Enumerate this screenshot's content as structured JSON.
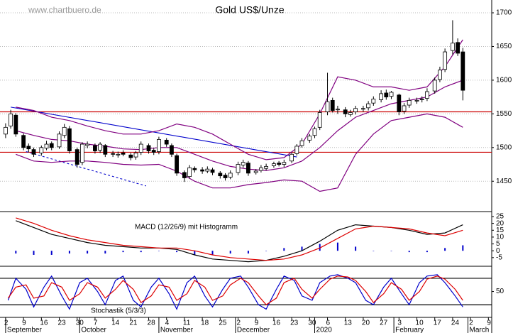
{
  "source": "www.chartbuero.de",
  "chart_data": [
    {
      "type": "candlestick",
      "title": "Gold US$/Unze",
      "x": [
        0,
        2,
        4,
        7,
        9,
        11,
        14,
        16,
        18,
        21,
        23,
        25,
        28,
        30,
        32,
        35,
        37,
        39,
        42,
        44,
        46,
        49,
        51,
        53,
        56,
        58,
        60,
        63,
        65,
        67,
        70,
        72,
        74,
        77,
        79,
        81,
        84,
        86,
        88,
        91,
        93,
        95,
        98,
        100,
        102,
        105,
        107,
        109,
        112,
        114,
        116,
        119,
        121,
        123,
        126,
        128,
        130,
        133,
        135,
        137,
        140,
        142,
        144,
        147,
        149,
        151,
        154,
        156,
        158,
        161,
        163,
        165,
        168,
        170,
        172,
        175,
        177,
        179
      ],
      "open": [
        1520,
        1532,
        1548,
        1518,
        1502,
        1497,
        1492,
        1499,
        1506,
        1501,
        1518,
        1528,
        1497,
        1478,
        1503,
        1503,
        1496,
        1503,
        1491,
        1489,
        1492,
        1489,
        1486,
        1493,
        1503,
        1496,
        1494,
        1511,
        1503,
        1488,
        1463,
        1457,
        1469,
        1467,
        1465,
        1467,
        1462,
        1459,
        1456,
        1463,
        1474,
        1477,
        1463,
        1466,
        1469,
        1473,
        1477,
        1475,
        1480,
        1491,
        1503,
        1511,
        1518,
        1530,
        1553,
        1570,
        1556,
        1556,
        1549,
        1553,
        1557,
        1559,
        1566,
        1571,
        1581,
        1576,
        1578,
        1554,
        1563,
        1569,
        1571,
        1573,
        1584,
        1601,
        1616,
        1644,
        1656,
        1642
      ],
      "high": [
        1536,
        1556,
        1551,
        1521,
        1506,
        1500,
        1503,
        1510,
        1509,
        1524,
        1535,
        1532,
        1500,
        1508,
        1509,
        1506,
        1508,
        1505,
        1495,
        1494,
        1496,
        1492,
        1495,
        1509,
        1506,
        1499,
        1516,
        1514,
        1506,
        1491,
        1466,
        1474,
        1472,
        1471,
        1472,
        1470,
        1465,
        1462,
        1466,
        1479,
        1482,
        1480,
        1468,
        1474,
        1476,
        1479,
        1480,
        1482,
        1493,
        1505,
        1514,
        1520,
        1531,
        1556,
        1611,
        1574,
        1562,
        1560,
        1556,
        1562,
        1562,
        1569,
        1576,
        1585,
        1586,
        1584,
        1580,
        1566,
        1574,
        1574,
        1576,
        1588,
        1604,
        1620,
        1647,
        1689,
        1662,
        1648
      ],
      "low": [
        1514,
        1528,
        1516,
        1496,
        1493,
        1486,
        1488,
        1496,
        1496,
        1498,
        1514,
        1491,
        1470,
        1474,
        1499,
        1491,
        1492,
        1486,
        1486,
        1485,
        1487,
        1481,
        1482,
        1489,
        1491,
        1489,
        1490,
        1501,
        1486,
        1458,
        1449,
        1454,
        1463,
        1461,
        1462,
        1459,
        1454,
        1451,
        1453,
        1459,
        1470,
        1458,
        1460,
        1463,
        1466,
        1470,
        1472,
        1471,
        1477,
        1488,
        1500,
        1507,
        1514,
        1526,
        1548,
        1552,
        1550,
        1545,
        1546,
        1549,
        1553,
        1555,
        1562,
        1567,
        1571,
        1572,
        1548,
        1550,
        1559,
        1565,
        1567,
        1569,
        1580,
        1597,
        1612,
        1638,
        1636,
        1570
      ],
      "close": [
        1530,
        1550,
        1520,
        1500,
        1498,
        1490,
        1500,
        1505,
        1500,
        1520,
        1530,
        1495,
        1475,
        1505,
        1505,
        1495,
        1505,
        1490,
        1490,
        1490,
        1490,
        1485,
        1492,
        1505,
        1495,
        1493,
        1512,
        1505,
        1490,
        1462,
        1455,
        1470,
        1467,
        1465,
        1468,
        1463,
        1458,
        1455,
        1462,
        1475,
        1478,
        1462,
        1465,
        1470,
        1472,
        1476,
        1475,
        1478,
        1490,
        1502,
        1510,
        1517,
        1528,
        1552,
        1568,
        1555,
        1557,
        1550,
        1552,
        1558,
        1558,
        1565,
        1572,
        1580,
        1575,
        1582,
        1553,
        1562,
        1570,
        1570,
        1572,
        1583,
        1600,
        1615,
        1642,
        1655,
        1640,
        1585
      ],
      "series": [
        {
          "color": "#800080",
          "x": [
            4,
            11,
            18,
            25,
            32,
            39,
            46,
            53,
            60,
            67,
            74,
            81,
            88,
            95,
            102,
            109,
            116,
            123,
            130,
            137,
            144,
            151,
            158,
            165,
            172,
            179
          ],
          "values": [
            1560,
            1555,
            1545,
            1540,
            1532,
            1525,
            1520,
            1520,
            1525,
            1535,
            1530,
            1520,
            1505,
            1490,
            1482,
            1485,
            1505,
            1550,
            1605,
            1600,
            1590,
            1590,
            1585,
            1590,
            1620,
            1660
          ]
        },
        {
          "color": "#800080",
          "x": [
            4,
            11,
            18,
            25,
            32,
            39,
            46,
            53,
            60,
            67,
            74,
            81,
            88,
            95,
            102,
            109,
            116,
            123,
            130,
            137,
            144,
            151,
            158,
            165,
            172,
            179
          ],
          "values": [
            1525,
            1518,
            1512,
            1510,
            1505,
            1502,
            1498,
            1497,
            1500,
            1500,
            1490,
            1480,
            1472,
            1468,
            1466,
            1470,
            1480,
            1500,
            1525,
            1545,
            1555,
            1565,
            1570,
            1575,
            1590,
            1600
          ]
        },
        {
          "color": "#800080",
          "x": [
            4,
            11,
            18,
            25,
            32,
            39,
            46,
            53,
            60,
            67,
            74,
            81,
            88,
            95,
            102,
            109,
            116,
            123,
            130,
            137,
            144,
            151,
            158,
            165,
            172,
            179
          ],
          "values": [
            1490,
            1480,
            1478,
            1480,
            1480,
            1478,
            1475,
            1474,
            1475,
            1465,
            1450,
            1440,
            1440,
            1445,
            1448,
            1452,
            1450,
            1435,
            1440,
            1490,
            1520,
            1540,
            1545,
            1550,
            1545,
            1530
          ]
        }
      ],
      "hlines": [
        1553,
        1493
      ],
      "hline_color": "#cc0000",
      "trendlines": [
        {
          "x": [
            2,
            114
          ],
          "y": [
            1560,
            1486
          ],
          "color": "#0000cc",
          "dashed": false
        },
        {
          "x": [
            8,
            55
          ],
          "y": [
            1494,
            1443
          ],
          "color": "#0000cc",
          "dashed": true
        }
      ],
      "xlim": [
        -2.2,
        190.3
      ],
      "ylim": [
        1406,
        1719
      ],
      "yticks": [
        1450,
        1500,
        1550,
        1600,
        1650,
        1700
      ],
      "grid": true
    },
    {
      "type": "macd",
      "label": "MACD (12/26/9) mit Histogramm",
      "x": [
        4,
        11,
        18,
        25,
        32,
        39,
        46,
        53,
        60,
        67,
        74,
        81,
        88,
        95,
        102,
        109,
        116,
        123,
        130,
        137,
        144,
        151,
        158,
        165,
        172,
        179
      ],
      "series": [
        {
          "color": "#000000",
          "values": [
            22,
            17,
            12,
            9,
            6,
            4,
            3,
            2,
            2,
            1,
            -3,
            -6,
            -7,
            -8,
            -7,
            -4,
            0,
            7,
            15,
            19,
            18,
            17,
            15,
            12,
            13,
            19
          ]
        },
        {
          "color": "#dd0000",
          "values": [
            24,
            20,
            15,
            11,
            8,
            6,
            4,
            3,
            2,
            2,
            0,
            -3,
            -5,
            -6,
            -7,
            -6,
            -3,
            2,
            9,
            16,
            18,
            17,
            16,
            13,
            11,
            15
          ]
        }
      ],
      "histogram": {
        "color": "#0000cc",
        "values": [
          -2,
          -3,
          -3,
          -2,
          -2,
          -2,
          -1,
          -1,
          0,
          -1,
          -3,
          -3,
          -2,
          -2,
          0,
          2,
          3,
          5,
          6,
          3,
          0,
          0,
          -1,
          -1,
          2,
          4
        ]
      },
      "xlim": [
        -2.2,
        190.3
      ],
      "ylim": [
        -10.8,
        27.6
      ],
      "yticks": [
        -5,
        0,
        5,
        10,
        15,
        20,
        25
      ]
    },
    {
      "type": "stochastic",
      "label": "Stochastik (5/3/3)",
      "x": [
        1,
        4,
        8,
        11,
        15,
        18,
        22,
        25,
        29,
        32,
        36,
        39,
        43,
        46,
        50,
        53,
        57,
        60,
        64,
        67,
        71,
        74,
        78,
        81,
        85,
        88,
        92,
        95,
        99,
        102,
        106,
        109,
        113,
        116,
        120,
        123,
        127,
        130,
        134,
        137,
        141,
        144,
        148,
        151,
        155,
        158,
        162,
        165,
        169,
        172,
        176,
        179
      ],
      "series": [
        {
          "color": "#0000cc",
          "values": [
            30,
            80,
            55,
            15,
            60,
            85,
            40,
            10,
            70,
            80,
            50,
            20,
            75,
            85,
            30,
            15,
            60,
            80,
            45,
            10,
            70,
            85,
            40,
            15,
            55,
            80,
            85,
            60,
            20,
            10,
            55,
            85,
            75,
            40,
            30,
            70,
            85,
            88,
            80,
            70,
            30,
            20,
            60,
            80,
            45,
            20,
            70,
            85,
            88,
            70,
            40,
            15
          ]
        },
        {
          "color": "#dd0000",
          "values": [
            35,
            60,
            65,
            35,
            40,
            70,
            60,
            30,
            45,
            70,
            60,
            35,
            55,
            75,
            55,
            25,
            40,
            65,
            60,
            30,
            45,
            75,
            60,
            30,
            40,
            65,
            80,
            70,
            40,
            20,
            35,
            70,
            80,
            55,
            35,
            55,
            78,
            85,
            83,
            75,
            50,
            25,
            45,
            70,
            55,
            30,
            50,
            78,
            85,
            78,
            55,
            30
          ]
        }
      ],
      "hlines": [
        80,
        20
      ],
      "hline_color": "#000000",
      "xlim": [
        -2.2,
        190.3
      ],
      "ylim": [
        -7,
        104
      ],
      "yticks": [
        50
      ],
      "xticks": [
        {
          "value": 0,
          "label": "2"
        },
        {
          "value": 7,
          "label": "9"
        },
        {
          "value": 14,
          "label": "16"
        },
        {
          "value": 21,
          "label": "23"
        },
        {
          "value": 28,
          "label": "30"
        },
        {
          "value": 35,
          "label": "7"
        },
        {
          "value": 42,
          "label": "14"
        },
        {
          "value": 49,
          "label": "21"
        },
        {
          "value": 56,
          "label": "28"
        },
        {
          "value": 63,
          "label": "4"
        },
        {
          "value": 70,
          "label": "11"
        },
        {
          "value": 77,
          "label": "18"
        },
        {
          "value": 84,
          "label": "25"
        },
        {
          "value": 91,
          "label": "2"
        },
        {
          "value": 98,
          "label": "9"
        },
        {
          "value": 105,
          "label": "16"
        },
        {
          "value": 112,
          "label": "23"
        },
        {
          "value": 119,
          "label": "30"
        },
        {
          "value": 126,
          "label": "6"
        },
        {
          "value": 133,
          "label": "13"
        },
        {
          "value": 140,
          "label": "20"
        },
        {
          "value": 147,
          "label": "27"
        },
        {
          "value": 154,
          "label": "3"
        },
        {
          "value": 161,
          "label": "10"
        },
        {
          "value": 168,
          "label": "17"
        },
        {
          "value": 175,
          "label": "24"
        },
        {
          "value": 182,
          "label": "2"
        },
        {
          "value": 189,
          "label": "9"
        }
      ],
      "month_labels": [
        {
          "value": 0,
          "label": "September"
        },
        {
          "value": 29,
          "label": "October"
        },
        {
          "value": 60,
          "label": "November"
        },
        {
          "value": 90,
          "label": "December"
        },
        {
          "value": 121,
          "label": "2020"
        },
        {
          "value": 152,
          "label": "February"
        },
        {
          "value": 181,
          "label": "March"
        }
      ]
    }
  ]
}
